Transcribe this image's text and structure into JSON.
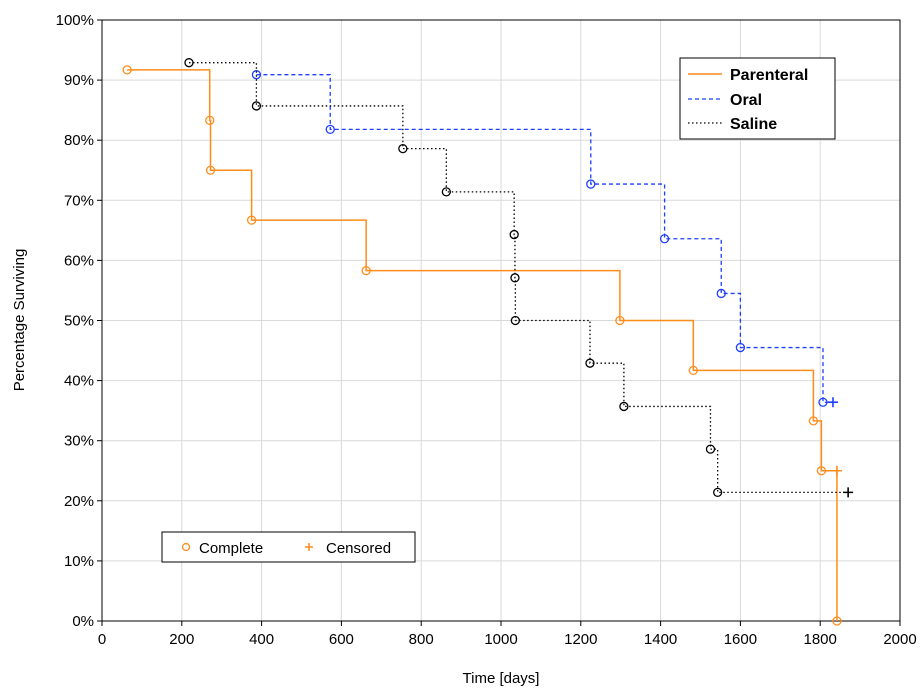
{
  "chart_data": {
    "type": "line",
    "subtype": "kaplan-meier step",
    "xlabel": "Time [days]",
    "ylabel": "Percentage Surviving",
    "xlim": [
      0,
      2000
    ],
    "ylim": [
      0,
      100
    ],
    "x_ticks": [
      "0",
      "200",
      "400",
      "600",
      "800",
      "1000",
      "1200",
      "1400",
      "1600",
      "1800",
      "2000"
    ],
    "y_ticks": [
      "0%",
      "10%",
      "20%",
      "30%",
      "40%",
      "50%",
      "60%",
      "70%",
      "80%",
      "90%",
      "100%"
    ],
    "grid": true,
    "series_legend_position": "top-right",
    "marker_legend_position": "bottom-left",
    "series": [
      {
        "name": "Parenteral",
        "color": "#ff8c1a",
        "line_style": "solid",
        "points": [
          [
            63,
            91.7
          ],
          [
            270,
            83.3
          ],
          [
            272,
            75.0
          ],
          [
            375,
            66.7
          ],
          [
            662,
            58.3
          ],
          [
            1298,
            50.0
          ],
          [
            1482,
            41.7
          ],
          [
            1783,
            33.3
          ],
          [
            1803,
            25.0
          ],
          [
            1842,
            0.0
          ]
        ],
        "censored": [
          [
            1842,
            25.0
          ]
        ]
      },
      {
        "name": "Oral",
        "color": "#1f3fff",
        "line_style": "dashed",
        "points": [
          [
            387,
            90.9
          ],
          [
            572,
            81.8
          ],
          [
            1225,
            72.7
          ],
          [
            1410,
            63.6
          ],
          [
            1552,
            54.5
          ],
          [
            1600,
            45.5
          ],
          [
            1807,
            36.4
          ]
        ],
        "censored": [
          [
            1832,
            36.4
          ]
        ]
      },
      {
        "name": "Saline",
        "color": "#000000",
        "line_style": "dotted",
        "points": [
          [
            218,
            92.9
          ],
          [
            387,
            85.7
          ],
          [
            754,
            78.6
          ],
          [
            863,
            71.4
          ],
          [
            1033,
            64.3
          ],
          [
            1035,
            57.1
          ],
          [
            1036,
            50.0
          ],
          [
            1223,
            42.9
          ],
          [
            1308,
            35.7
          ],
          [
            1525,
            28.6
          ],
          [
            1543,
            21.4
          ]
        ],
        "censored": [
          [
            1870,
            21.4
          ]
        ]
      }
    ],
    "marker_legend": {
      "complete_label": "Complete",
      "censored_label": "Censored",
      "color": "#ff8c1a"
    }
  }
}
